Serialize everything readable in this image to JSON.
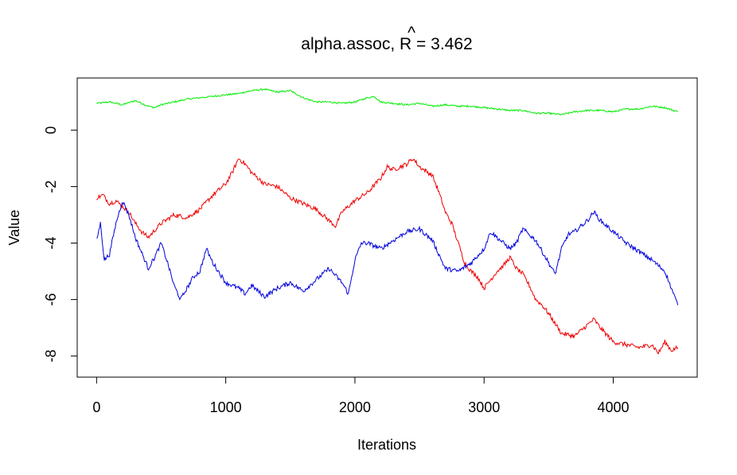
{
  "chart_data": {
    "type": "line",
    "title": {
      "prefix": "alpha.assoc, ",
      "stat": "R",
      "hat": "^",
      "eq": " = ",
      "value": "3.462"
    },
    "xlabel": "Iterations",
    "ylabel": "Value",
    "xlim": [
      -150,
      4650
    ],
    "ylim": [
      -8.75,
      1.85
    ],
    "x_ticks": [
      0,
      1000,
      2000,
      3000,
      4000
    ],
    "x_tick_labels": [
      "0",
      "1000",
      "2000",
      "3000",
      "4000"
    ],
    "y_ticks": [
      0,
      -2,
      -4,
      -6,
      -8
    ],
    "y_tick_labels": [
      "0",
      "-2",
      "-4",
      "-6",
      "-8"
    ],
    "grid": false,
    "legend": "none",
    "series": [
      {
        "color": "#00ee00",
        "x": [
          0,
          100,
          200,
          300,
          400,
          450,
          500,
          600,
          700,
          800,
          900,
          1000,
          1100,
          1200,
          1300,
          1400,
          1500,
          1600,
          1700,
          1800,
          1900,
          2000,
          2100,
          2150,
          2200,
          2300,
          2400,
          2500,
          2600,
          2700,
          2800,
          2900,
          3000,
          3100,
          3200,
          3300,
          3400,
          3500,
          3600,
          3700,
          3800,
          3900,
          4000,
          4100,
          4200,
          4300,
          4400,
          4500
        ],
        "y": [
          0.95,
          1.0,
          0.9,
          1.05,
          0.85,
          0.8,
          0.9,
          1.0,
          1.1,
          1.15,
          1.2,
          1.25,
          1.3,
          1.4,
          1.45,
          1.35,
          1.4,
          1.15,
          1.0,
          1.0,
          0.95,
          1.0,
          1.15,
          1.2,
          1.0,
          0.95,
          0.9,
          0.95,
          0.85,
          0.9,
          0.85,
          0.85,
          0.8,
          0.75,
          0.7,
          0.7,
          0.6,
          0.6,
          0.55,
          0.65,
          0.7,
          0.7,
          0.65,
          0.75,
          0.75,
          0.85,
          0.8,
          0.65
        ]
      },
      {
        "color": "#ee0000",
        "x": [
          0,
          50,
          100,
          150,
          200,
          250,
          300,
          350,
          400,
          500,
          600,
          700,
          800,
          900,
          1000,
          1050,
          1100,
          1150,
          1200,
          1300,
          1400,
          1500,
          1600,
          1700,
          1800,
          1850,
          1900,
          2000,
          2100,
          2200,
          2250,
          2300,
          2400,
          2450,
          2500,
          2600,
          2650,
          2700,
          2750,
          2800,
          2850,
          2900,
          2950,
          3000,
          3050,
          3100,
          3150,
          3200,
          3250,
          3300,
          3350,
          3400,
          3450,
          3500,
          3600,
          3700,
          3750,
          3800,
          3850,
          3900,
          4000,
          4100,
          4200,
          4300,
          4350,
          4400,
          4450,
          4500
        ],
        "y": [
          -2.4,
          -2.3,
          -2.6,
          -2.5,
          -2.7,
          -2.9,
          -3.3,
          -3.6,
          -3.8,
          -3.3,
          -3.0,
          -3.1,
          -2.8,
          -2.3,
          -1.9,
          -1.5,
          -1.0,
          -1.2,
          -1.5,
          -1.9,
          -2.0,
          -2.4,
          -2.6,
          -2.8,
          -3.2,
          -3.4,
          -2.9,
          -2.5,
          -2.2,
          -1.7,
          -1.3,
          -1.4,
          -1.2,
          -1.0,
          -1.3,
          -1.6,
          -2.2,
          -2.9,
          -3.3,
          -4.0,
          -4.7,
          -5.0,
          -5.2,
          -5.6,
          -5.3,
          -5.0,
          -4.8,
          -4.5,
          -4.9,
          -5.1,
          -5.5,
          -6.0,
          -6.2,
          -6.5,
          -7.2,
          -7.3,
          -7.1,
          -6.9,
          -6.7,
          -7.0,
          -7.5,
          -7.6,
          -7.7,
          -7.6,
          -7.9,
          -7.5,
          -7.8,
          -7.7
        ]
      },
      {
        "color": "#0000dd",
        "x": [
          0,
          30,
          60,
          100,
          150,
          200,
          250,
          300,
          400,
          450,
          500,
          550,
          600,
          650,
          700,
          750,
          800,
          850,
          900,
          1000,
          1100,
          1150,
          1200,
          1300,
          1400,
          1500,
          1600,
          1700,
          1800,
          1900,
          1950,
          2000,
          2050,
          2100,
          2200,
          2300,
          2400,
          2500,
          2600,
          2700,
          2800,
          2900,
          3000,
          3050,
          3100,
          3200,
          3250,
          3300,
          3400,
          3500,
          3550,
          3600,
          3650,
          3700,
          3800,
          3850,
          3900,
          4000,
          4100,
          4200,
          4300,
          4400,
          4450,
          4500
        ],
        "y": [
          -3.9,
          -3.3,
          -4.6,
          -4.4,
          -3.3,
          -2.5,
          -3.0,
          -3.8,
          -4.9,
          -4.5,
          -4.0,
          -4.7,
          -5.5,
          -6.0,
          -5.6,
          -5.2,
          -5.0,
          -4.2,
          -4.7,
          -5.4,
          -5.6,
          -5.8,
          -5.5,
          -5.9,
          -5.6,
          -5.4,
          -5.7,
          -5.3,
          -4.9,
          -5.4,
          -5.8,
          -4.6,
          -4.0,
          -4.0,
          -4.2,
          -3.9,
          -3.6,
          -3.5,
          -3.9,
          -4.9,
          -5.0,
          -4.7,
          -4.2,
          -3.6,
          -3.8,
          -4.2,
          -4.0,
          -3.5,
          -3.9,
          -4.7,
          -5.1,
          -4.2,
          -3.7,
          -3.6,
          -3.2,
          -2.9,
          -3.2,
          -3.6,
          -4.0,
          -4.3,
          -4.6,
          -5.0,
          -5.6,
          -6.2
        ]
      }
    ]
  }
}
